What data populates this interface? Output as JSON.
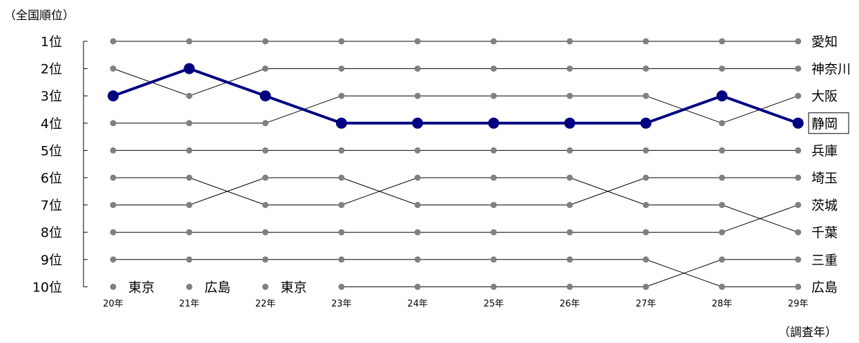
{
  "chart_data": {
    "type": "bump",
    "ylabel": "（全国順位）",
    "xlabel": "（調査年）",
    "x": [
      "20年",
      "21年",
      "22年",
      "23年",
      "24年",
      "25年",
      "26年",
      "27年",
      "28年",
      "29年"
    ],
    "ranks": [
      "1位",
      "2位",
      "3位",
      "4位",
      "5位",
      "6位",
      "7位",
      "8位",
      "9位",
      "10位"
    ],
    "highlight": "静岡",
    "colors": {
      "highlight": "#000080",
      "other_line": "#000000",
      "other_marker": "#808080"
    },
    "series": [
      {
        "name": "愛知",
        "values": [
          1,
          1,
          1,
          1,
          1,
          1,
          1,
          1,
          1,
          1
        ]
      },
      {
        "name": "神奈川",
        "values": [
          2,
          3,
          2,
          2,
          2,
          2,
          2,
          2,
          2,
          2
        ]
      },
      {
        "name": "大阪",
        "values": [
          4,
          4,
          4,
          3,
          3,
          3,
          3,
          3,
          4,
          3
        ]
      },
      {
        "name": "静岡",
        "values": [
          3,
          2,
          3,
          4,
          4,
          4,
          4,
          4,
          3,
          4
        ]
      },
      {
        "name": "兵庫",
        "values": [
          5,
          5,
          5,
          5,
          5,
          5,
          5,
          5,
          5,
          5
        ]
      },
      {
        "name": "埼玉",
        "values": [
          7,
          7,
          6,
          6,
          7,
          7,
          7,
          6,
          6,
          6
        ]
      },
      {
        "name": "茨城",
        "values": [
          8,
          8,
          8,
          8,
          8,
          8,
          8,
          8,
          8,
          7
        ]
      },
      {
        "name": "千葉",
        "values": [
          6,
          6,
          7,
          7,
          6,
          6,
          6,
          7,
          7,
          8
        ]
      },
      {
        "name": "三重",
        "values": [
          null,
          null,
          null,
          10,
          10,
          10,
          10,
          10,
          9,
          9
        ]
      },
      {
        "name": "広島",
        "values": [
          9,
          9,
          9,
          9,
          9,
          9,
          9,
          9,
          10,
          10
        ]
      }
    ],
    "rank10_labels": [
      "東京",
      "広島",
      "東京"
    ]
  }
}
